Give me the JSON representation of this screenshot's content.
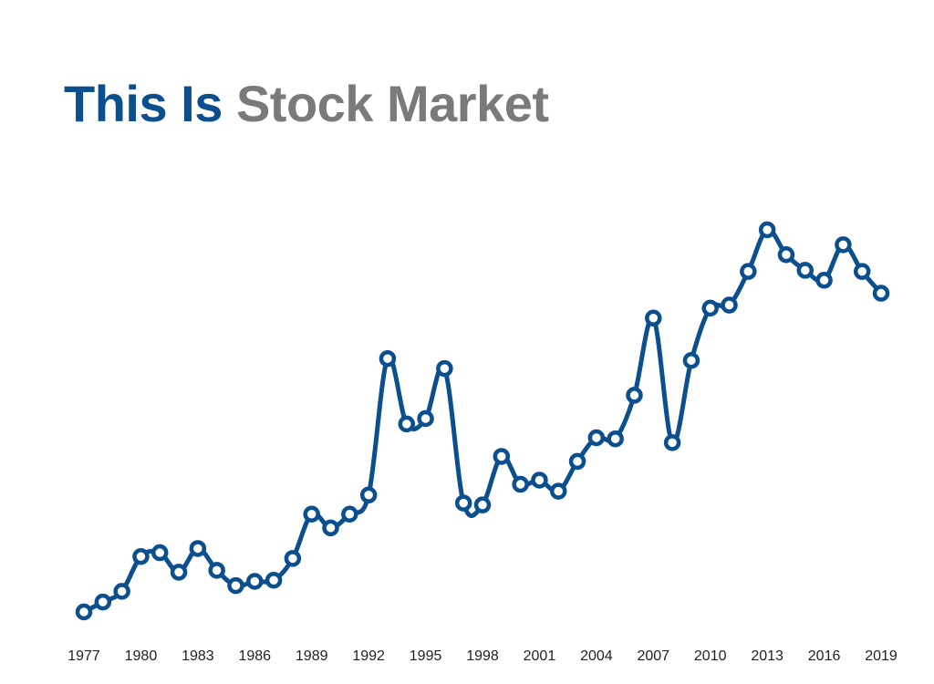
{
  "title": {
    "part1": "This Is",
    "part2": "Stock Market"
  },
  "colors": {
    "line": "#0b4f8f",
    "title_primary": "#0b4f8f",
    "title_secondary": "#7a7a7a",
    "tick_label": "#222222",
    "marker_fill": "#ffffff",
    "background": "#ffffff"
  },
  "chart_data": {
    "type": "line",
    "title": "This Is Stock Market",
    "xlabel": "",
    "ylabel": "",
    "grid": false,
    "legend": "none",
    "y_axis_visible": false,
    "xlim": [
      1977,
      2019
    ],
    "ylim": [
      0,
      100
    ],
    "x_tick_labels": [
      "1977",
      "1980",
      "1983",
      "1986",
      "1989",
      "1992",
      "1995",
      "1998",
      "2001",
      "2004",
      "2007",
      "2010",
      "2013",
      "2016",
      "2019"
    ],
    "x": [
      1977,
      1978,
      1979,
      1980,
      1981,
      1982,
      1983,
      1984,
      1985,
      1986,
      1987,
      1988,
      1989,
      1990,
      1991,
      1992,
      1993,
      1994,
      1995,
      1996,
      1997,
      1998,
      1999,
      2000,
      2001,
      2002,
      2003,
      2004,
      2005,
      2006,
      2007,
      2008,
      2009,
      2010,
      2011,
      2012,
      2013,
      2014,
      2015,
      2016,
      2017,
      2018,
      2019
    ],
    "series": [
      {
        "values": [
          0,
          2.6,
          5.4,
          14.5,
          15.5,
          10.4,
          16.6,
          10.9,
          6.9,
          8.0,
          8.3,
          14.0,
          25.6,
          22.0,
          25.6,
          30.6,
          66.3,
          49.2,
          50.6,
          63.7,
          28.5,
          28.0,
          40.7,
          33.4,
          34.5,
          31.6,
          39.4,
          45.6,
          45.3,
          56.7,
          76.9,
          44.3,
          65.8,
          79.5,
          80.3,
          89.1,
          100,
          93.5,
          89.4,
          86.8,
          96.1,
          89.1,
          83.4
        ]
      }
    ]
  }
}
